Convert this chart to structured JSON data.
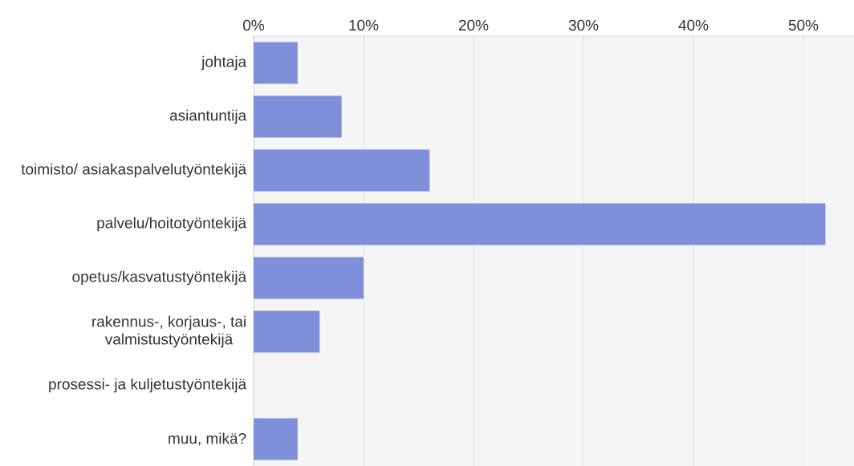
{
  "chart_data": {
    "type": "bar",
    "orientation": "horizontal",
    "categories": [
      "johtaja",
      "asiantuntija",
      "toimisto/ asiakaspalvelutyöntekijä",
      "palvelu/hoitotyöntekijä",
      "opetus/kasvatustyöntekijä",
      "rakennus-, korjaus-, tai valmistustyöntekijä",
      "prosessi- ja kuljetustyöntekijä",
      "muu, mikä?"
    ],
    "values": [
      4,
      8,
      16,
      52,
      10,
      6,
      0,
      4
    ],
    "color": "#7f8fd9",
    "xlim": [
      0,
      54.6
    ],
    "xticks": [
      {
        "value": 0,
        "label": "0%"
      },
      {
        "value": 10,
        "label": "10%"
      },
      {
        "value": 20,
        "label": "20%"
      },
      {
        "value": 30,
        "label": "30%"
      },
      {
        "value": 40,
        "label": "40%"
      },
      {
        "value": 50,
        "label": "50%"
      }
    ],
    "grid": "x"
  }
}
